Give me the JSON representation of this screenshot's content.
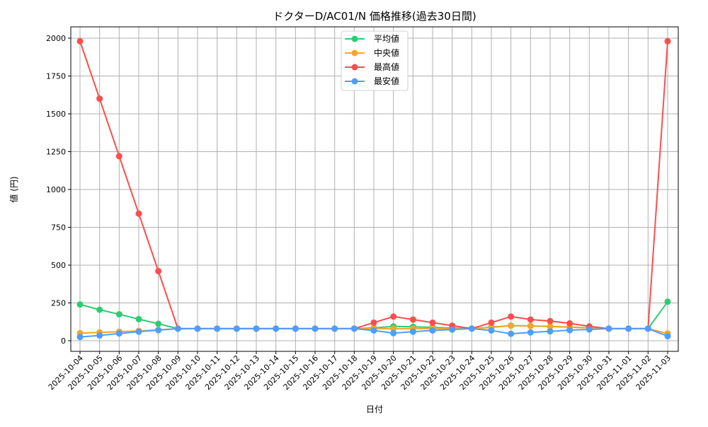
{
  "chart_data": {
    "type": "line",
    "title": "ドクターD/AC01/N 価格推移(過去30日間)",
    "xlabel": "日付",
    "ylabel": "値 (円)",
    "ylim": [
      -70,
      2075
    ],
    "yticks": [
      0,
      250,
      500,
      750,
      1000,
      1250,
      1500,
      1750,
      2000
    ],
    "grid": true,
    "legend_position": "top-center",
    "x": [
      "2025-10-04",
      "2025-10-05",
      "2025-10-06",
      "2025-10-07",
      "2025-10-08",
      "2025-10-09",
      "2025-10-10",
      "2025-10-11",
      "2025-10-12",
      "2025-10-13",
      "2025-10-14",
      "2025-10-15",
      "2025-10-16",
      "2025-10-17",
      "2025-10-18",
      "2025-10-19",
      "2025-10-20",
      "2025-10-21",
      "2025-10-22",
      "2025-10-23",
      "2025-10-24",
      "2025-10-25",
      "2025-10-26",
      "2025-10-27",
      "2025-10-28",
      "2025-10-29",
      "2025-10-30",
      "2025-10-31",
      "2025-11-01",
      "2025-11-02",
      "2025-11-03"
    ],
    "series": [
      {
        "name": "平均値",
        "color": "#2ecc71",
        "values": [
          240,
          205,
          175,
          143,
          112,
          80,
          80,
          80,
          80,
          80,
          80,
          80,
          80,
          80,
          80,
          85,
          95,
          92,
          88,
          84,
          80,
          90,
          100,
          98,
          94,
          90,
          85,
          80,
          80,
          80,
          258
        ]
      },
      {
        "name": "中央値",
        "color": "#f5a623",
        "values": [
          50,
          55,
          60,
          65,
          72,
          80,
          80,
          80,
          80,
          80,
          80,
          80,
          80,
          80,
          80,
          80,
          80,
          80,
          80,
          80,
          80,
          88,
          100,
          98,
          95,
          90,
          85,
          80,
          80,
          80,
          48
        ]
      },
      {
        "name": "最高値",
        "color": "#ff4d4d",
        "values": [
          1980,
          1600,
          1220,
          840,
          460,
          80,
          80,
          80,
          80,
          80,
          80,
          80,
          80,
          80,
          80,
          120,
          160,
          140,
          120,
          100,
          80,
          120,
          160,
          140,
          130,
          115,
          95,
          80,
          80,
          80,
          1980
        ]
      },
      {
        "name": "最安値",
        "color": "#4d9eff",
        "values": [
          25,
          35,
          48,
          60,
          70,
          80,
          80,
          80,
          80,
          80,
          80,
          80,
          80,
          80,
          80,
          68,
          50,
          60,
          68,
          74,
          80,
          68,
          46,
          55,
          62,
          70,
          75,
          80,
          80,
          80,
          30
        ]
      }
    ]
  }
}
